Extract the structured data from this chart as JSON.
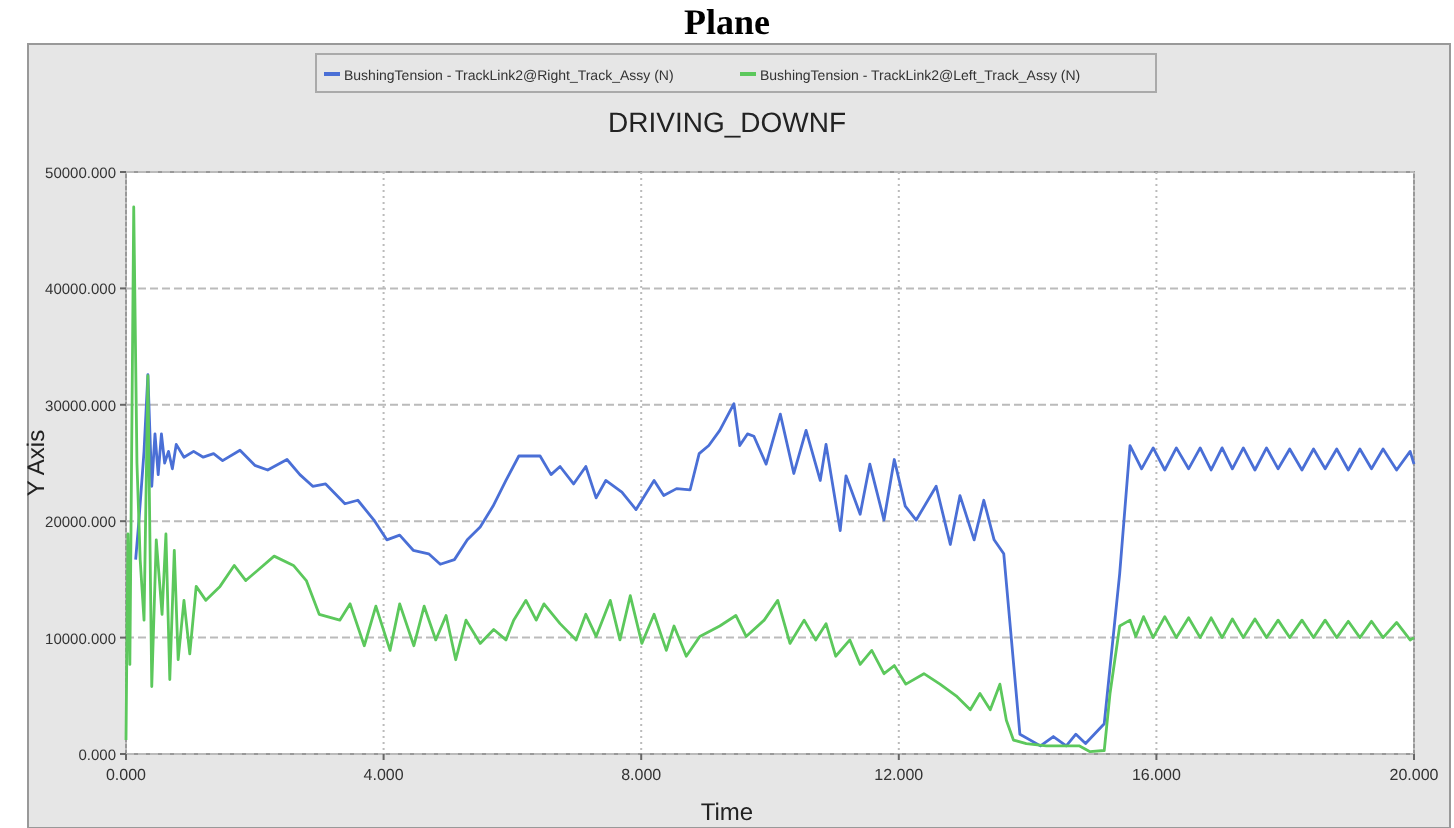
{
  "chart_data": {
    "type": "line",
    "title": "Plane",
    "subtitle": "DRIVING_DOWNF",
    "xlabel": "Time",
    "ylabel": "Y Axis",
    "xlim": [
      0,
      20
    ],
    "ylim": [
      0,
      50000
    ],
    "xticks": [
      {
        "value": 0,
        "label": "0.000"
      },
      {
        "value": 4,
        "label": "4.000"
      },
      {
        "value": 8,
        "label": "8.000"
      },
      {
        "value": 12,
        "label": "12.000"
      },
      {
        "value": 16,
        "label": "16.000"
      },
      {
        "value": 20,
        "label": "20.000"
      }
    ],
    "yticks": [
      {
        "value": 0,
        "label": "0.000"
      },
      {
        "value": 10000,
        "label": "10000.000"
      },
      {
        "value": 20000,
        "label": "20000.000"
      },
      {
        "value": 30000,
        "label": "30000.000"
      },
      {
        "value": 40000,
        "label": "40000.000"
      },
      {
        "value": 50000,
        "label": "50000.000"
      }
    ],
    "grid": true,
    "legend": "top",
    "line_style": "solid",
    "marker": "none",
    "series": [
      {
        "name": "BushingTension - TrackLink2@Right_Track_Assy (N)",
        "color": "#4a6fd6",
        "x": [
          0.15,
          0.2,
          0.28,
          0.34,
          0.4,
          0.45,
          0.5,
          0.55,
          0.6,
          0.66,
          0.72,
          0.78,
          0.9,
          1.05,
          1.2,
          1.36,
          1.5,
          1.77,
          2.0,
          2.2,
          2.5,
          2.7,
          2.9,
          3.1,
          3.4,
          3.6,
          3.85,
          4.05,
          4.25,
          4.46,
          4.7,
          4.88,
          5.1,
          5.3,
          5.5,
          5.7,
          5.9,
          6.1,
          6.43,
          6.6,
          6.74,
          6.95,
          7.14,
          7.3,
          7.45,
          7.7,
          7.92,
          8.2,
          8.35,
          8.55,
          8.76,
          8.9,
          9.05,
          9.22,
          9.44,
          9.53,
          9.65,
          9.75,
          9.94,
          10.16,
          10.37,
          10.56,
          10.78,
          10.87,
          11.09,
          11.18,
          11.4,
          11.55,
          11.77,
          11.93,
          12.1,
          12.27,
          12.58,
          12.8,
          12.95,
          13.17,
          13.32,
          13.48,
          13.63,
          13.88,
          14.2,
          14.4,
          14.6,
          14.75,
          14.9,
          15.19,
          15.43,
          15.59,
          15.77,
          15.95,
          16.13,
          16.31,
          16.5,
          16.68,
          16.85,
          17.02,
          17.18,
          17.35,
          17.53,
          17.71,
          17.89,
          18.07,
          18.26,
          18.44,
          18.62,
          18.8,
          18.98,
          19.16,
          19.34,
          19.52,
          19.73,
          19.94,
          20.0
        ],
        "values": [
          16700,
          20000,
          26000,
          32600,
          23000,
          27500,
          24000,
          27500,
          25000,
          26000,
          24500,
          26600,
          25500,
          26000,
          25500,
          25800,
          25200,
          26100,
          24800,
          24400,
          25300,
          24000,
          23000,
          23200,
          21500,
          21800,
          20100,
          18400,
          18800,
          17500,
          17200,
          16300,
          16700,
          18400,
          19500,
          21300,
          23500,
          25600,
          25600,
          24000,
          24700,
          23200,
          24700,
          22000,
          23500,
          22500,
          21000,
          23500,
          22200,
          22800,
          22700,
          25800,
          26500,
          27800,
          30100,
          26500,
          27500,
          27300,
          24900,
          29200,
          24100,
          27800,
          23500,
          26600,
          19200,
          23900,
          20600,
          24900,
          20100,
          25300,
          21300,
          20100,
          23000,
          18000,
          22200,
          18400,
          21800,
          18400,
          17200,
          1700,
          700,
          1500,
          700,
          1700,
          900,
          2600,
          15500,
          26500,
          24500,
          26300,
          24400,
          26300,
          24500,
          26300,
          24400,
          26300,
          24500,
          26300,
          24400,
          26300,
          24500,
          26200,
          24400,
          26200,
          24500,
          26200,
          24400,
          26200,
          24500,
          26200,
          24400,
          26000,
          24900
        ]
      },
      {
        "name": "BushingTension - TrackLink2@Left_Track_Assy (N)",
        "color": "#5cc85c",
        "x": [
          0.0,
          0.03,
          0.06,
          0.12,
          0.17,
          0.22,
          0.28,
          0.34,
          0.4,
          0.47,
          0.56,
          0.62,
          0.68,
          0.75,
          0.81,
          0.9,
          0.99,
          1.09,
          1.24,
          1.46,
          1.68,
          1.86,
          2.3,
          2.6,
          2.8,
          3.0,
          3.32,
          3.48,
          3.7,
          3.88,
          4.1,
          4.25,
          4.47,
          4.63,
          4.81,
          4.97,
          5.12,
          5.28,
          5.5,
          5.71,
          5.9,
          6.02,
          6.21,
          6.37,
          6.49,
          6.74,
          6.99,
          7.14,
          7.3,
          7.52,
          7.67,
          7.83,
          8.01,
          8.2,
          8.39,
          8.51,
          8.7,
          8.91,
          9.22,
          9.47,
          9.63,
          9.91,
          10.12,
          10.31,
          10.53,
          10.71,
          10.87,
          11.02,
          11.24,
          11.4,
          11.58,
          11.77,
          11.93,
          12.11,
          12.39,
          12.64,
          12.89,
          13.11,
          13.26,
          13.42,
          13.57,
          13.67,
          13.78,
          13.98,
          14.29,
          14.6,
          14.8,
          14.97,
          15.19,
          15.28,
          15.43,
          15.59,
          15.68,
          15.8,
          15.95,
          16.13,
          16.31,
          16.5,
          16.68,
          16.85,
          17.02,
          17.18,
          17.35,
          17.53,
          17.71,
          17.89,
          18.07,
          18.26,
          18.44,
          18.62,
          18.8,
          18.98,
          19.16,
          19.34,
          19.52,
          19.73,
          19.94,
          20.0
        ],
        "values": [
          1200,
          18900,
          7700,
          47000,
          25000,
          16700,
          11500,
          32500,
          5800,
          18400,
          12000,
          18900,
          6400,
          17500,
          8100,
          13200,
          8600,
          14400,
          13200,
          14400,
          16200,
          14900,
          17000,
          16200,
          14900,
          12000,
          11500,
          12900,
          9300,
          12700,
          8900,
          12900,
          9300,
          12700,
          9800,
          11900,
          8100,
          11500,
          9500,
          10700,
          9800,
          11500,
          13200,
          11500,
          12900,
          11200,
          9800,
          12000,
          10100,
          13200,
          9800,
          13600,
          9500,
          12000,
          8900,
          11000,
          8400,
          10100,
          11000,
          11900,
          10100,
          11500,
          13200,
          9500,
          11500,
          9800,
          11200,
          8400,
          9800,
          7700,
          8900,
          6900,
          7600,
          6000,
          6900,
          6000,
          5000,
          3800,
          5200,
          3800,
          6000,
          2900,
          1200,
          900,
          700,
          700,
          700,
          200,
          300,
          5200,
          11000,
          11500,
          10100,
          11800,
          10000,
          11800,
          10000,
          11700,
          10000,
          11700,
          10000,
          11600,
          10000,
          11600,
          10000,
          11500,
          10000,
          11500,
          10000,
          11500,
          10000,
          11400,
          10000,
          11400,
          10000,
          11300,
          9800,
          10000
        ]
      }
    ]
  }
}
